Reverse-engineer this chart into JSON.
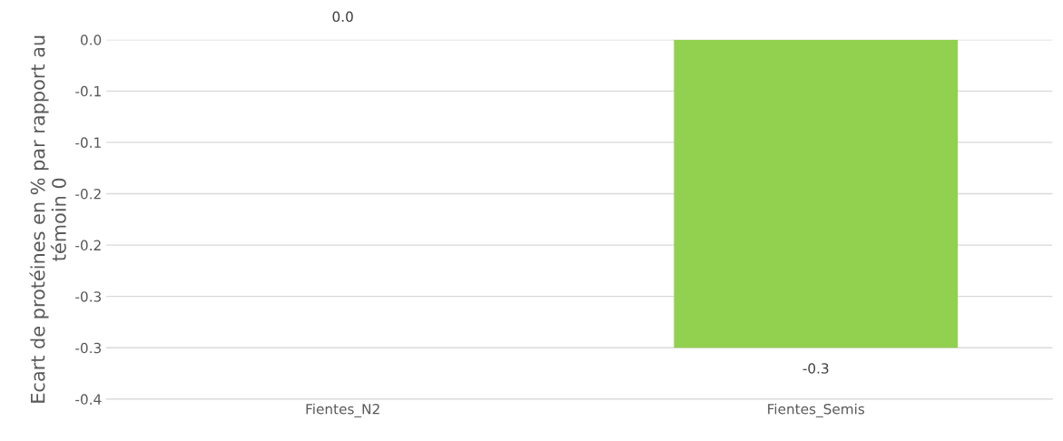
{
  "chart_data": {
    "type": "bar",
    "ylabel": "Ecart de protéines en % par rapport au témoin 0",
    "categories": [
      "Fientes_N2",
      "Fientes_Semis"
    ],
    "values": [
      0.0,
      -0.3
    ],
    "colors": [
      "#92d050",
      "#92d050"
    ],
    "value_labels": [
      "0.0",
      "-0.3"
    ],
    "ylim": [
      -0.35,
      0
    ],
    "yticks": [
      {
        "value": 0,
        "label": "0.0"
      },
      {
        "value": -0.05,
        "label": "-0.1"
      },
      {
        "value": -0.1,
        "label": "-0.1"
      },
      {
        "value": -0.15,
        "label": "-0.2"
      },
      {
        "value": -0.2,
        "label": "-0.2"
      },
      {
        "value": -0.25,
        "label": "-0.3"
      },
      {
        "value": -0.3,
        "label": "-0.3"
      },
      {
        "value": -0.35,
        "label": "-0.4"
      }
    ],
    "grid": "y",
    "legend": false
  }
}
